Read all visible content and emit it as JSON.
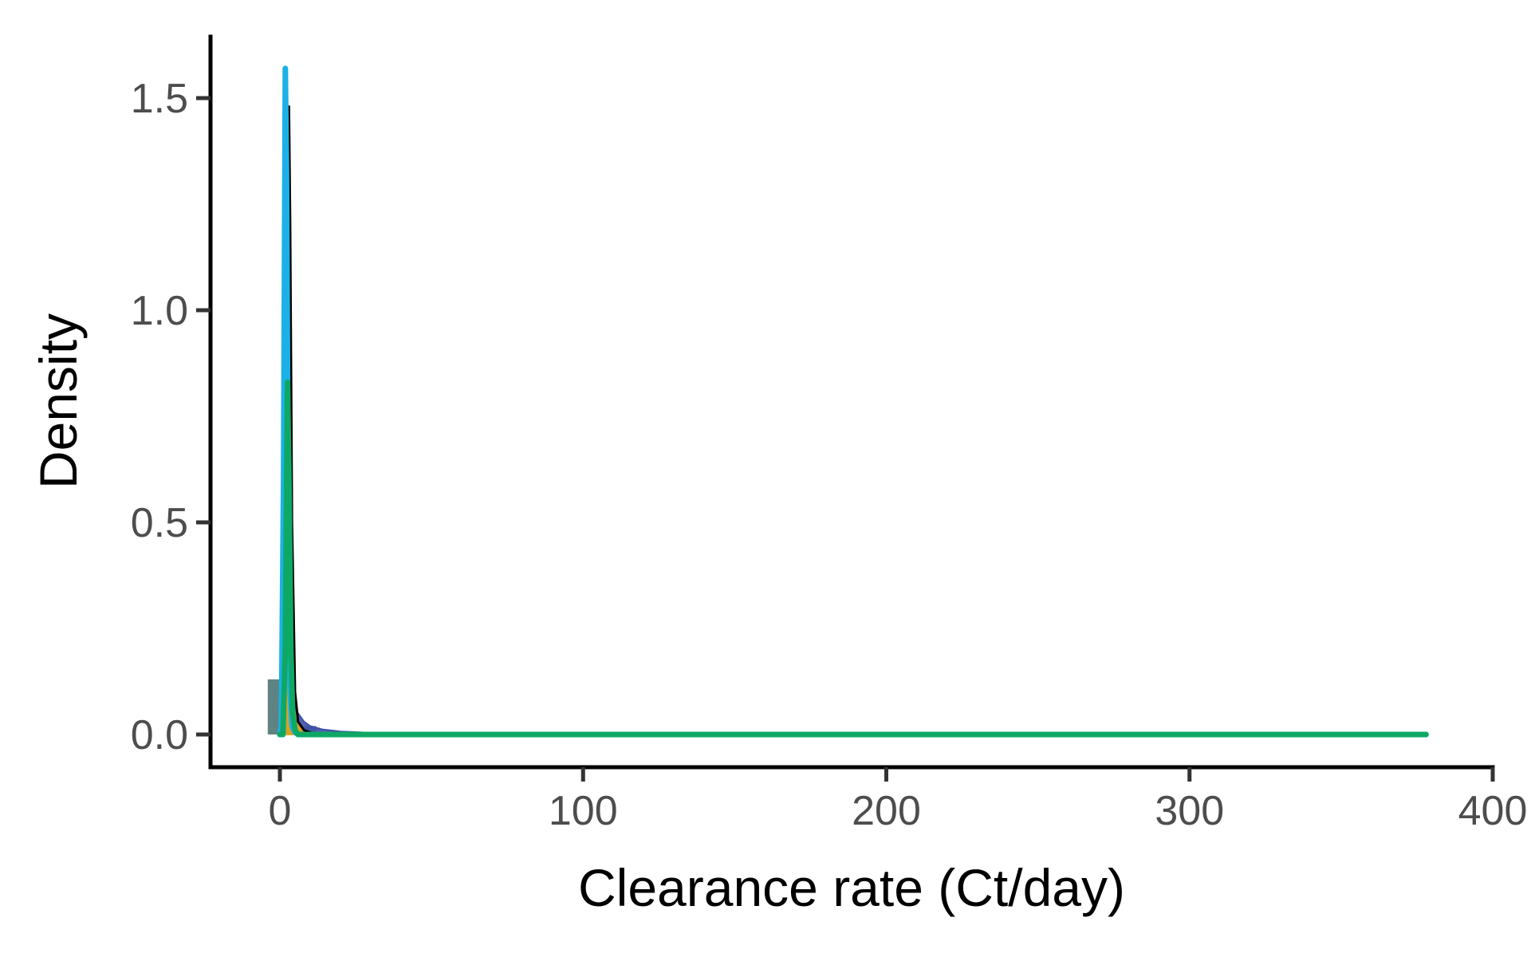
{
  "chart_data": {
    "type": "area",
    "xlabel": "Clearance rate (Ct/day)",
    "ylabel": "Density",
    "xlim": [
      -25,
      400
    ],
    "ylim": [
      -0.08,
      1.65
    ],
    "x_ticks": [
      {
        "value": 0,
        "label": "0"
      },
      {
        "value": 100,
        "label": "100"
      },
      {
        "value": 200,
        "label": "200"
      },
      {
        "value": 300,
        "label": "300"
      },
      {
        "value": 400,
        "label": "400"
      }
    ],
    "y_ticks": [
      {
        "value": 0.0,
        "label": "0.0"
      },
      {
        "value": 0.5,
        "label": "0.5"
      },
      {
        "value": 1.0,
        "label": "1.0"
      },
      {
        "value": 1.5,
        "label": "1.5"
      }
    ],
    "grid": false,
    "legend": "none",
    "histogram": {
      "color": "#5f8383",
      "bins": [
        {
          "x0": -4,
          "x1": 0,
          "y": 0.13
        },
        {
          "x0": 0,
          "x1": 2,
          "y": 0.11
        },
        {
          "x0": 2,
          "x1": 4,
          "y": 0.07
        },
        {
          "x0": 8,
          "x1": 12,
          "y": 0.02
        }
      ]
    },
    "series": [
      {
        "style": "area",
        "color": "#3f4fa8",
        "x": [
          0,
          1,
          2,
          3,
          4,
          5,
          6,
          8,
          10,
          14,
          20,
          30,
          40,
          60,
          100,
          200,
          378
        ],
        "y": [
          0,
          0.13,
          0.15,
          0.14,
          0.1,
          0.07,
          0.05,
          0.03,
          0.02,
          0.012,
          0.007,
          0.004,
          0.002,
          0.001,
          0,
          0,
          0
        ]
      },
      {
        "style": "area",
        "color": "#e5a81e",
        "x": [
          0,
          1,
          2,
          2.5,
          3,
          4,
          5,
          6,
          7,
          9,
          12,
          378
        ],
        "y": [
          0,
          0.05,
          0.2,
          0.35,
          0.2,
          0.09,
          0.05,
          0.03,
          0.015,
          0.005,
          0,
          0
        ]
      },
      {
        "style": "line",
        "color": "#000000",
        "x": [
          0,
          1.5,
          2.5,
          3.0,
          3.4,
          4.0,
          5.0,
          6,
          8,
          12,
          378
        ],
        "y": [
          0,
          0.05,
          0.9,
          1.48,
          1.2,
          0.5,
          0.1,
          0.03,
          0.01,
          0,
          0
        ]
      },
      {
        "style": "line",
        "color": "#1bb1e8",
        "x": [
          0,
          0.5,
          1.2,
          1.8,
          2.2,
          2.8,
          3.4,
          4,
          5,
          6,
          8,
          378
        ],
        "y": [
          0,
          0.02,
          0.6,
          1.57,
          1.3,
          0.45,
          0.1,
          0.02,
          0.005,
          0,
          0,
          0
        ]
      },
      {
        "style": "line",
        "color": "#0ea865",
        "x": [
          0,
          1.0,
          1.8,
          2.5,
          3.0,
          3.6,
          4.2,
          5,
          6,
          8,
          20,
          100,
          200,
          300,
          378
        ],
        "y": [
          0,
          0,
          0.2,
          0.83,
          0.6,
          0.2,
          0.05,
          0.01,
          0,
          0,
          0,
          0,
          0,
          0,
          0
        ]
      }
    ]
  }
}
